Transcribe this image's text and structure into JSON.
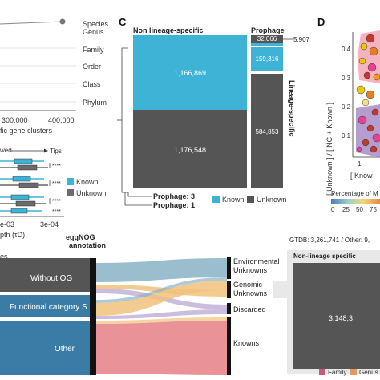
{
  "panelA": {
    "ranks": [
      "Species",
      "Genus",
      "Family",
      "Order",
      "Class",
      "Phylum"
    ],
    "x_ticks": [
      "300,000",
      "400,000"
    ],
    "x_label_fragment": "fic gene clusters",
    "tips_label": "Tips",
    "observed_fragment": "wed",
    "significance": [
      "****",
      "****",
      "****",
      "****"
    ],
    "legend": [
      {
        "label": "Known",
        "color": "#3fb3d6"
      },
      {
        "label": "Unknown",
        "color": "#6b6b6b"
      }
    ],
    "depth_ticks": [
      "e-03",
      "3e-04"
    ],
    "depth_label": "pth (τD)"
  },
  "panelC": {
    "letter": "C",
    "col_left_title": "Non lineage-specific",
    "col_right_title": "Prophage",
    "side_label": "Lineage-specific",
    "cells": [
      {
        "label": "1,166,869",
        "color": "#3fb3d6"
      },
      {
        "label": "1,176,548",
        "color": "#555555"
      },
      {
        "label": "32,066",
        "color": "#555555"
      },
      {
        "label": "5,907",
        "color": "#3fb3d6"
      },
      {
        "label": "159,316",
        "color": "#3fb3d6"
      },
      {
        "label": "584,853",
        "color": "#555555"
      }
    ],
    "prophage_labels": [
      "Prophage: 3",
      "Prophage: 1"
    ],
    "legend": [
      {
        "label": "Known",
        "color": "#3fb3d6"
      },
      {
        "label": "Unknown",
        "color": "#555555"
      }
    ]
  },
  "panelD": {
    "letter": "D",
    "y_ticks": [
      "0.4",
      "0.3",
      "0.2",
      "0.1"
    ],
    "y_label": "[ Unknown ] / [ NC + Known ]",
    "x_tick": "1",
    "x_label_fragment": "[ Know",
    "colorbar_title": "Percentage of M",
    "colorbar_ticks": [
      "0",
      "25",
      "50",
      "75"
    ]
  },
  "panelE": {
    "left_fragment": "es",
    "annotation_title": "eggNOG annotation",
    "left_nodes": [
      "Without OG",
      "Functional category S",
      "Other"
    ],
    "right_nodes": [
      "Environmental Unknowns",
      "Genomic Unknowns",
      "Discarded",
      "Knowns"
    ],
    "flow_colors": {
      "env": "#8ab3c6",
      "gen": "#f1c27d",
      "disc": "#b7a0cf",
      "known": "#e57f86"
    }
  },
  "panelF": {
    "header": "GTDB: 3,261,741 / Other: 9,",
    "box_title": "Non-lineage specific",
    "box_value": "3,148,3",
    "legend": [
      {
        "label": "Family",
        "color": "#c55a7a"
      },
      {
        "label": "Genus",
        "color": "#e09a62"
      }
    ]
  }
}
